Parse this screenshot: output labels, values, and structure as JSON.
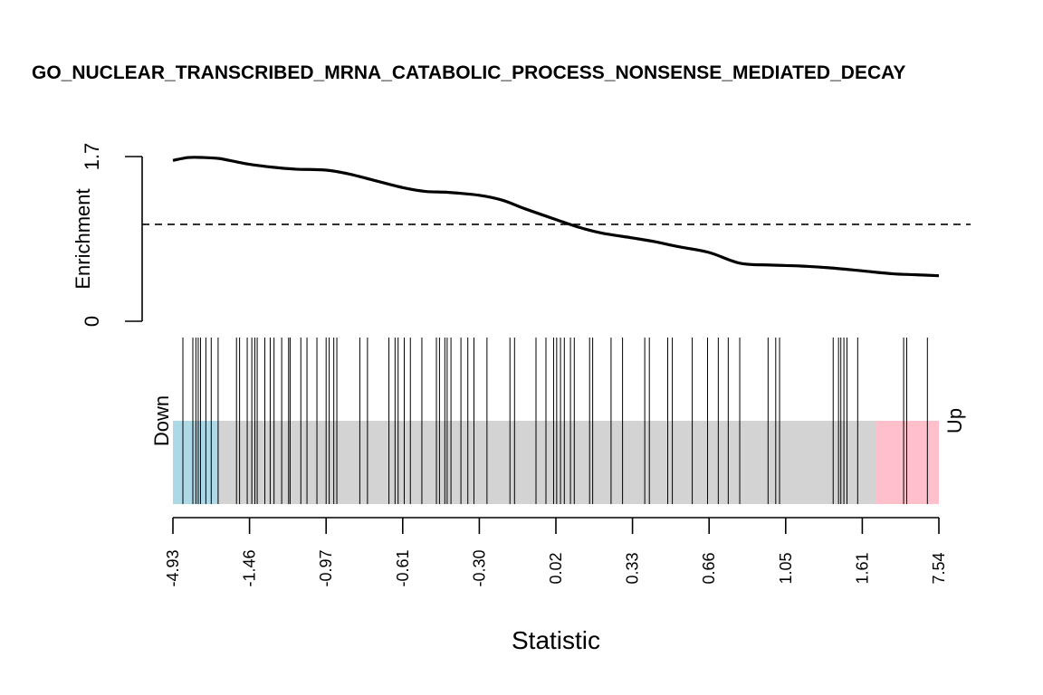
{
  "chart_data": {
    "type": "barcode-enrichment",
    "title": "GO_NUCLEAR_TRANSCRIBED_MRNA_CATABOLIC_PROCESS_NONSENSE_MEDIATED_DECAY",
    "xlabel": "Statistic",
    "ylabel": "Enrichment",
    "yticks": [
      "0",
      "1.7"
    ],
    "ylim": [
      0,
      1.7
    ],
    "dashed_reference": 1.0,
    "down_label": "Down",
    "up_label": "Up",
    "x_ticks": [
      "-4.93",
      "-1.46",
      "-0.97",
      "-0.61",
      "-0.30",
      "0.02",
      "0.33",
      "0.66",
      "1.05",
      "1.61",
      "7.54"
    ],
    "x_tick_positions": [
      0,
      0.1,
      0.2,
      0.3,
      0.4,
      0.5,
      0.6,
      0.7,
      0.8,
      0.9,
      1.0
    ],
    "down_region": [
      0,
      0.06
    ],
    "up_region": [
      0.918,
      1.0
    ],
    "enrichment_curve": {
      "x": [
        0,
        0.02,
        0.04,
        0.06,
        0.08,
        0.1,
        0.13,
        0.16,
        0.2,
        0.23,
        0.26,
        0.3,
        0.33,
        0.36,
        0.4,
        0.43,
        0.46,
        0.5,
        0.53,
        0.56,
        0.6,
        0.63,
        0.66,
        0.7,
        0.74,
        0.78,
        0.82,
        0.86,
        0.9,
        0.94,
        0.97,
        1.0
      ],
      "y": [
        1.66,
        1.69,
        1.69,
        1.68,
        1.65,
        1.62,
        1.59,
        1.57,
        1.56,
        1.52,
        1.46,
        1.38,
        1.34,
        1.33,
        1.3,
        1.25,
        1.16,
        1.05,
        0.97,
        0.91,
        0.86,
        0.82,
        0.77,
        0.71,
        0.6,
        0.58,
        0.57,
        0.55,
        0.52,
        0.49,
        0.48,
        0.47
      ]
    },
    "barcode_positions": [
      0.013,
      0.026,
      0.03,
      0.033,
      0.036,
      0.043,
      0.05,
      0.059,
      0.083,
      0.087,
      0.097,
      0.103,
      0.107,
      0.11,
      0.12,
      0.127,
      0.132,
      0.142,
      0.151,
      0.153,
      0.167,
      0.175,
      0.188,
      0.2,
      0.204,
      0.21,
      0.214,
      0.244,
      0.254,
      0.282,
      0.29,
      0.294,
      0.302,
      0.31,
      0.325,
      0.344,
      0.348,
      0.355,
      0.358,
      0.363,
      0.376,
      0.385,
      0.393,
      0.41,
      0.44,
      0.446,
      0.474,
      0.487,
      0.497,
      0.501,
      0.506,
      0.511,
      0.519,
      0.524,
      0.544,
      0.548,
      0.572,
      0.587,
      0.616,
      0.622,
      0.646,
      0.652,
      0.678,
      0.698,
      0.712,
      0.725,
      0.74,
      0.777,
      0.787,
      0.792,
      0.862,
      0.869,
      0.872,
      0.876,
      0.88,
      0.894,
      0.954,
      0.958,
      0.985
    ]
  }
}
